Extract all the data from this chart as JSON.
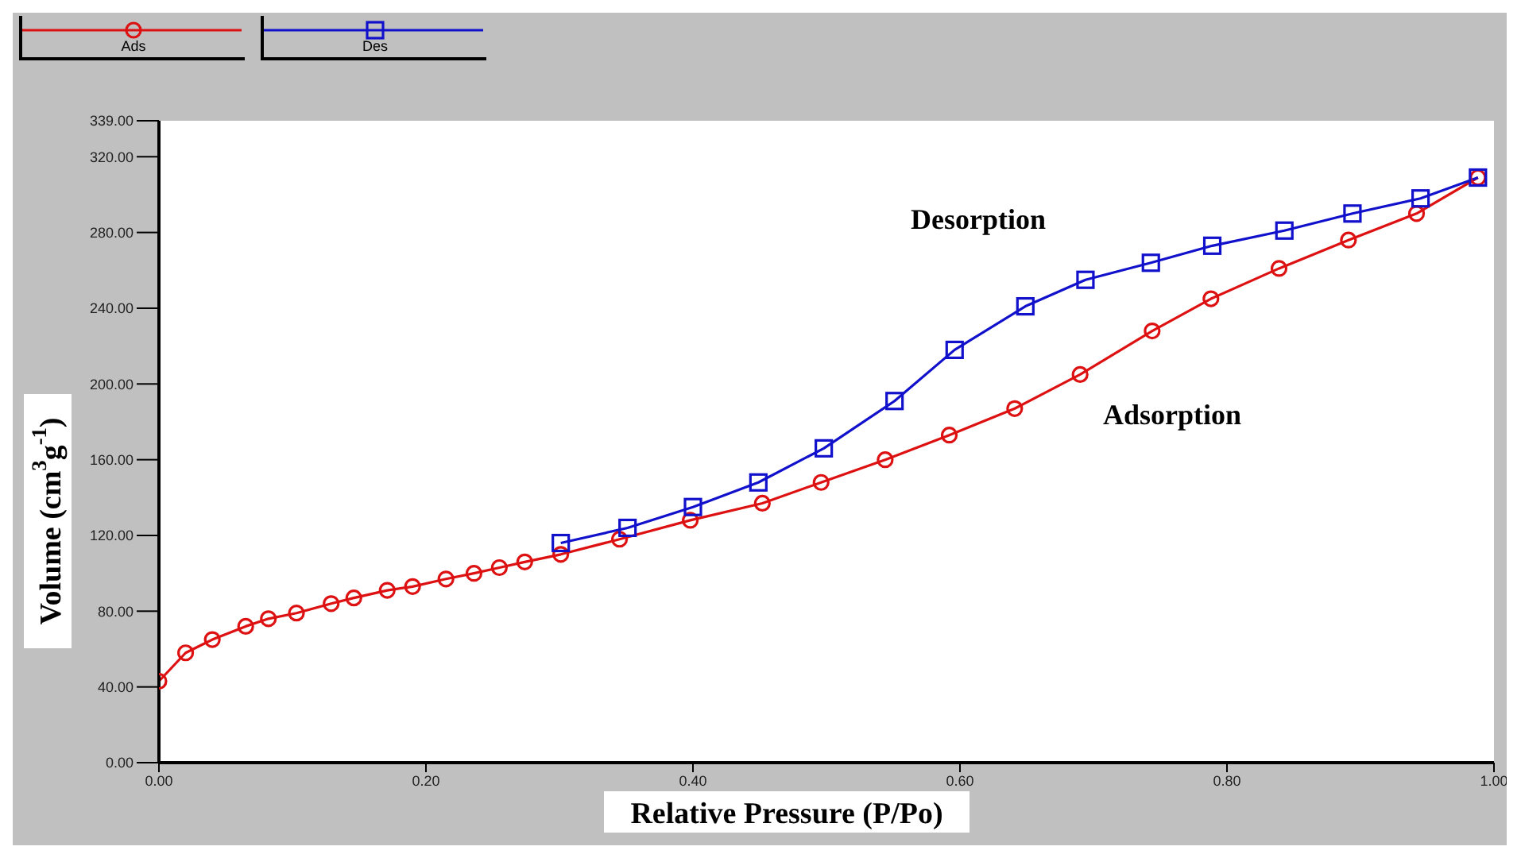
{
  "chart_data": {
    "type": "line",
    "xlabel": "Relative Pressure (P/Po)",
    "ylabel": "Volume (cm$^{3}$g$^{-1}$)",
    "xlim": [
      0,
      1
    ],
    "xticks": [
      {
        "value": 0,
        "label": "0.00"
      },
      {
        "value": 0.2,
        "label": "0.20"
      },
      {
        "value": 0.4,
        "label": "0.40"
      },
      {
        "value": 0.6,
        "label": "0.60"
      },
      {
        "value": 0.8,
        "label": "0.80"
      },
      {
        "value": 1,
        "label": "1.00"
      }
    ],
    "ylim": [
      0,
      339
    ],
    "yticks": [
      {
        "value": 0,
        "label": "0.00"
      },
      {
        "value": 40,
        "label": "40.00"
      },
      {
        "value": 80,
        "label": "80.00"
      },
      {
        "value": 120,
        "label": "120.00"
      },
      {
        "value": 160,
        "label": "160.00"
      },
      {
        "value": 200,
        "label": "200.00"
      },
      {
        "value": 240,
        "label": "240.00"
      },
      {
        "value": 280,
        "label": "280.00"
      },
      {
        "value": 320,
        "label": "320.00"
      },
      {
        "value": 339,
        "label": "339.00"
      }
    ],
    "legend": "top left",
    "line_style": "solid",
    "annotations": [
      "Desorption",
      "Adsorption"
    ],
    "series": [
      {
        "name": "Ads",
        "color": "#dd1111",
        "marker": "circle",
        "x": [
          0,
          0.02,
          0.04,
          0.065,
          0.082,
          0.103,
          0.129,
          0.146,
          0.171,
          0.19,
          0.215,
          0.236,
          0.255,
          0.274,
          0.301,
          0.345,
          0.398,
          0.452,
          0.496,
          0.544,
          0.592,
          0.641,
          0.69,
          0.744,
          0.788,
          0.839,
          0.891,
          0.942,
          0.988
        ],
        "values": [
          43,
          58,
          65,
          72,
          76,
          79,
          84,
          87,
          91,
          93,
          97,
          100,
          103,
          106,
          110,
          118,
          128,
          137,
          148,
          160,
          173,
          187,
          205,
          228,
          245,
          261,
          276,
          290,
          309
        ]
      },
      {
        "name": "Des",
        "color": "#1111cc",
        "marker": "square",
        "x": [
          0.301,
          0.351,
          0.4,
          0.449,
          0.498,
          0.551,
          0.596,
          0.649,
          0.694,
          0.743,
          0.789,
          0.843,
          0.894,
          0.945,
          0.988
        ],
        "values": [
          116,
          124,
          135,
          148,
          166,
          191,
          218,
          241,
          255,
          264,
          273,
          281,
          290,
          298,
          309
        ]
      }
    ]
  }
}
